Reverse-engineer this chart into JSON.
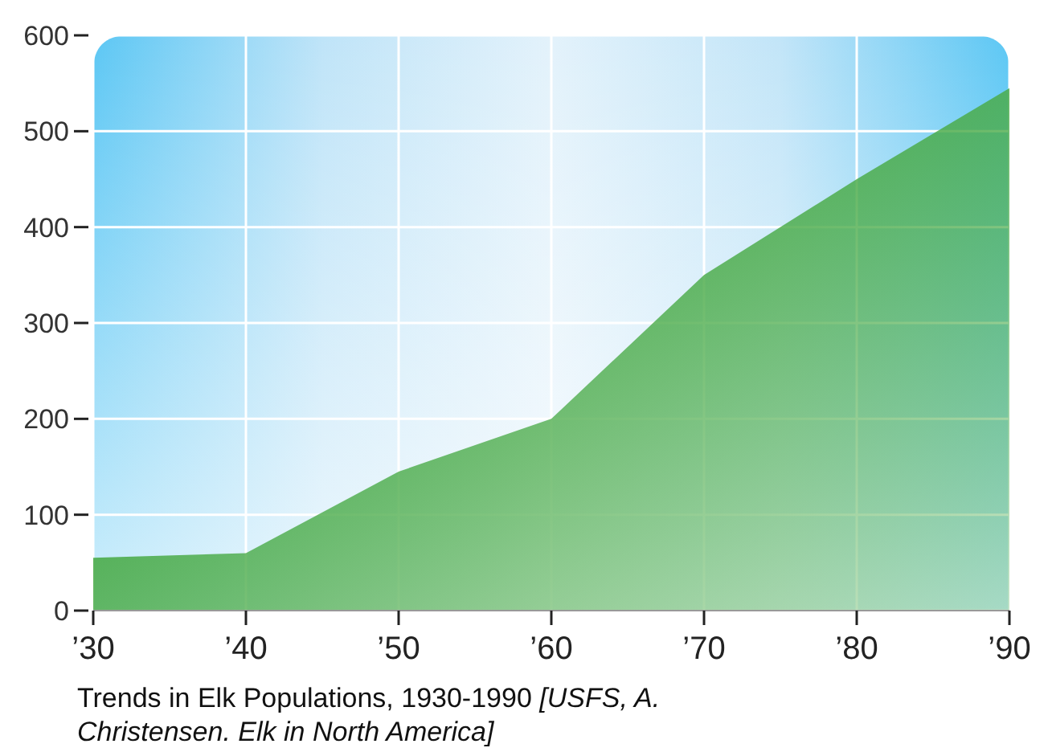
{
  "chart_data": {
    "type": "area",
    "x": [
      1930,
      1940,
      1950,
      1960,
      1970,
      1980,
      1990
    ],
    "values": [
      55,
      60,
      145,
      200,
      350,
      450,
      545
    ],
    "color": "#4aab48",
    "xlim": [
      1930,
      1990
    ],
    "xticks": [
      {
        "value": 1930,
        "label": "’30"
      },
      {
        "value": 1940,
        "label": "’40"
      },
      {
        "value": 1950,
        "label": "’50"
      },
      {
        "value": 1960,
        "label": "’60"
      },
      {
        "value": 1970,
        "label": "’70"
      },
      {
        "value": 1980,
        "label": "’80"
      },
      {
        "value": 1990,
        "label": "’90"
      }
    ],
    "ylim": [
      0,
      600
    ],
    "yticks": [
      0,
      100,
      200,
      300,
      400,
      500,
      600
    ],
    "grid": true,
    "annotations": [
      "Trends in Elk Populations, 1930-1990",
      "[USFS, A. Christensen. Elk in North America]"
    ]
  }
}
